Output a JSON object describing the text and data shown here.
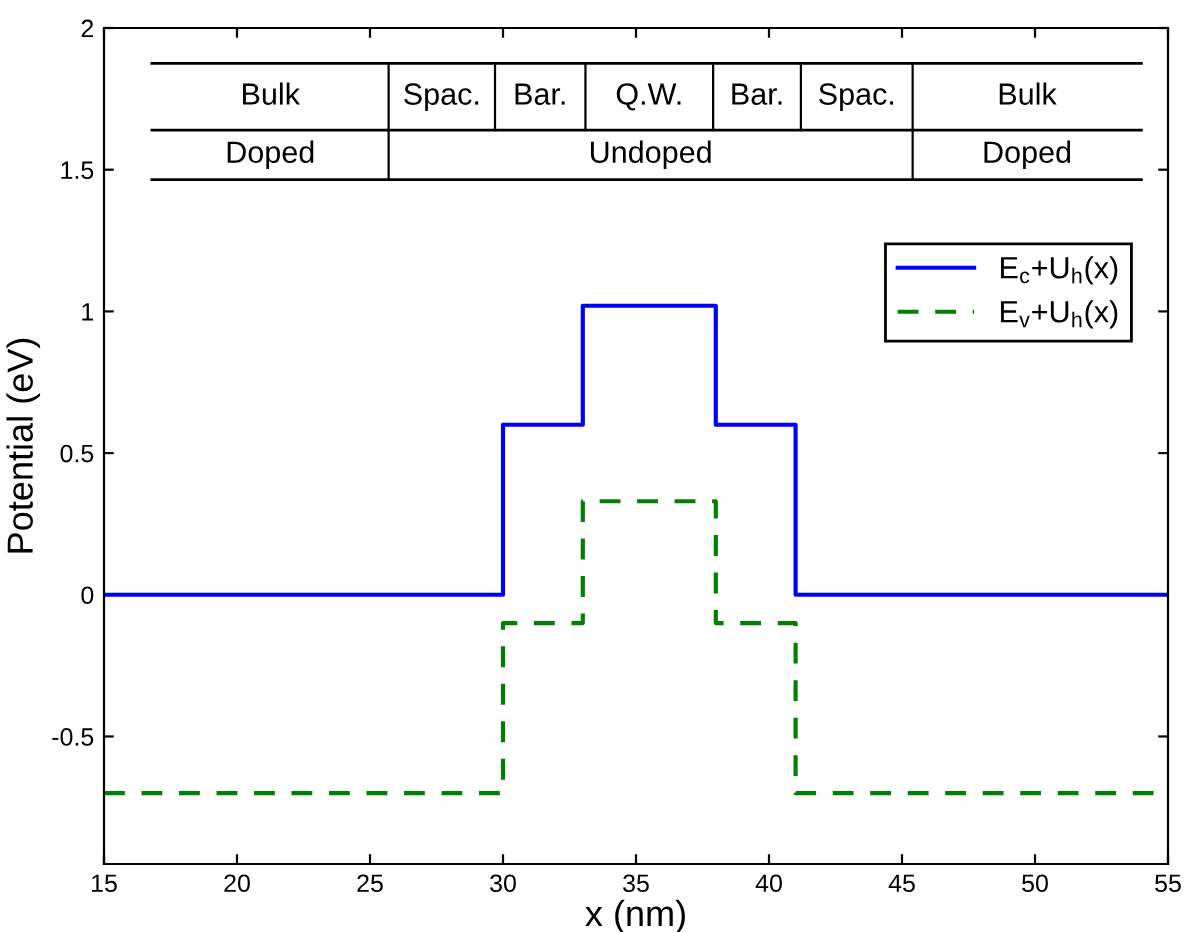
{
  "chart_data": {
    "type": "step",
    "xlabel": "x (nm)",
    "ylabel": "Potential (eV)",
    "xlim": [
      15,
      55
    ],
    "xticks": [
      15,
      20,
      25,
      30,
      35,
      40,
      45,
      50,
      55
    ],
    "ylim": [
      -0.95,
      2
    ],
    "yticks": [
      -0.5,
      0,
      0.5,
      1,
      1.5,
      2
    ],
    "series": [
      {
        "name": "E$_{c}$+U$_{h}$(x)",
        "color": "#0000ff",
        "line_style": "solid",
        "x": [
          15,
          30,
          33,
          38,
          41,
          55
        ],
        "values": [
          0,
          0.6,
          1.02,
          0.6,
          0,
          0
        ]
      },
      {
        "name": "E$_{v}$+U$_{h}$(x)",
        "color": "#008000",
        "line_style": "dashed",
        "x": [
          15,
          30,
          33,
          38,
          41,
          55
        ],
        "values": [
          -0.7,
          -0.1,
          0.33,
          -0.1,
          -0.7,
          -0.7
        ]
      }
    ],
    "annotations": [
      "Bulk",
      "Spac.",
      "Bar.",
      "Q.W.",
      "Bar.",
      "Spac.",
      "Bulk",
      "Doped",
      "Undoped",
      "Doped"
    ],
    "legend": "top right",
    "grid": false
  }
}
